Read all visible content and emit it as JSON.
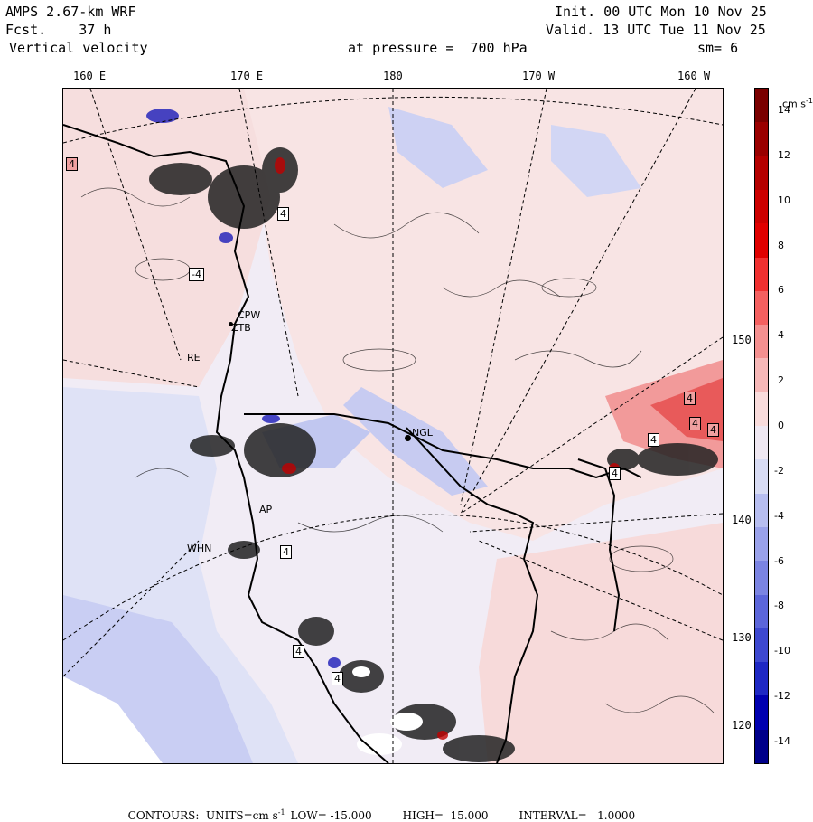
{
  "header": {
    "model": "AMPS 2.67-km WRF",
    "forecast": "Fcst.    37 h",
    "field": "Vertical velocity",
    "pressure": "at pressure =  700 hPa",
    "init": "Init. 00 UTC Mon 10 Nov 25",
    "valid": "Valid. 13 UTC Tue 11 Nov 25",
    "smoothing": "sm= 6"
  },
  "longitude_labels": [
    "160 E",
    "170 E",
    "180",
    "170 W",
    "160 W"
  ],
  "latitude_labels": [
    "150 W",
    "140 W",
    "130 W",
    "120 W"
  ],
  "stations": [
    "CPW",
    "ZTB",
    "RE",
    "NGL",
    "AP",
    "WHN"
  ],
  "contour_marks": [
    "4",
    "4",
    "-4",
    "4",
    "4",
    "4",
    "4",
    "4",
    "4",
    "4",
    "4"
  ],
  "colorbar": {
    "units": "cm s",
    "units_exp": "-1",
    "labels": [
      "14",
      "12",
      "10",
      "8",
      "6",
      "4",
      "2",
      "0",
      "-2",
      "-4",
      "-6",
      "-8",
      "-10",
      "-12",
      "-14"
    ],
    "colors": [
      "#7a0000",
      "#9a0000",
      "#b40000",
      "#cc0000",
      "#e00000",
      "#f03030",
      "#f46060",
      "#f49090",
      "#f6b8b8",
      "#f9dcdc",
      "#efe8f2",
      "#d8dcf4",
      "#b7bef0",
      "#9aa2ea",
      "#7b84e2",
      "#5c66da",
      "#3d48d0",
      "#1e28c4",
      "#0000b0",
      "#00008a"
    ],
    "range": [
      -15,
      15
    ]
  },
  "footer": {
    "prefix": "CONTOURS:  UNITS=cm s",
    "units_exp": "-1",
    "low": "LOW= -15.000",
    "high": "HIGH=  15.000",
    "interval": "INTERVAL=   1.0000"
  }
}
